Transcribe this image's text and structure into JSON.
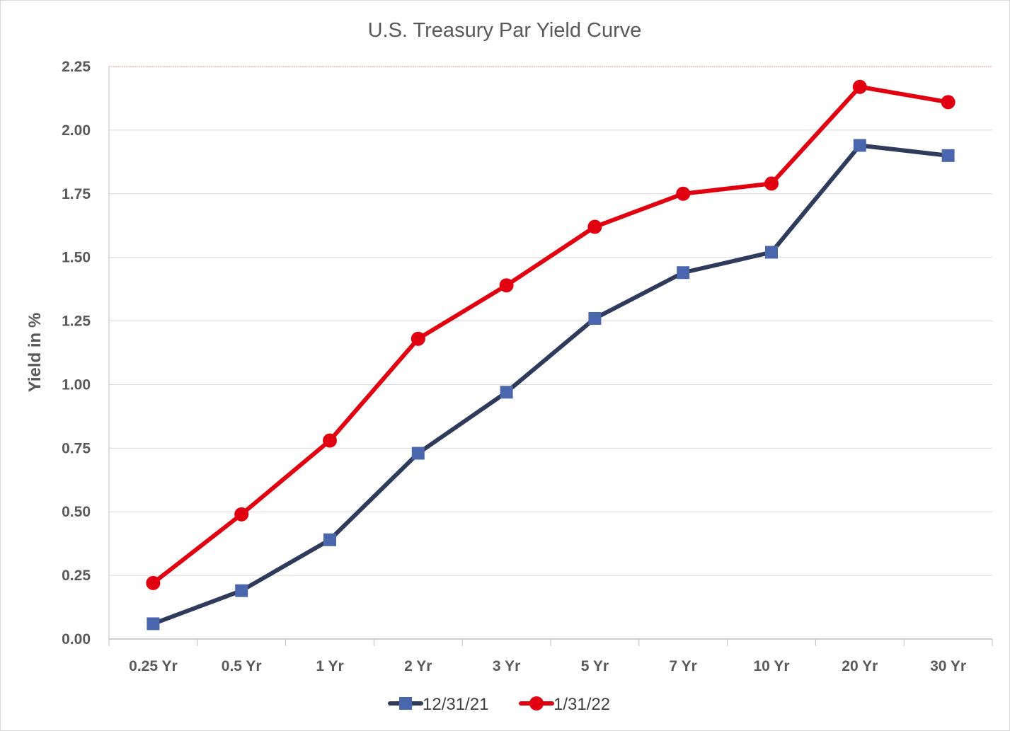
{
  "chart_data": {
    "type": "line",
    "title": "U.S. Treasury Par Yield Curve",
    "xlabel": "",
    "ylabel": "Yield in %",
    "categories": [
      "0.25 Yr",
      "0.5 Yr",
      "1 Yr",
      "2 Yr",
      "3 Yr",
      "5 Yr",
      "7 Yr",
      "10 Yr",
      "20 Yr",
      "30 Yr"
    ],
    "ylim": [
      0,
      2.25
    ],
    "yticks": [
      "0.00",
      "0.25",
      "0.50",
      "0.75",
      "1.00",
      "1.25",
      "1.50",
      "1.75",
      "2.00",
      "2.25"
    ],
    "grid": true,
    "legend_position": "bottom",
    "series": [
      {
        "name": "12/31/21",
        "color": "#2f3b5c",
        "marker_color": "#4a67ad",
        "marker": "square",
        "values": [
          0.06,
          0.19,
          0.39,
          0.73,
          0.97,
          1.26,
          1.44,
          1.52,
          1.94,
          1.9
        ]
      },
      {
        "name": "1/31/22",
        "color": "#e0000f",
        "marker_color": "#e0000f",
        "marker": "circle",
        "values": [
          0.22,
          0.49,
          0.78,
          1.18,
          1.39,
          1.62,
          1.75,
          1.79,
          2.17,
          2.11
        ]
      }
    ]
  }
}
